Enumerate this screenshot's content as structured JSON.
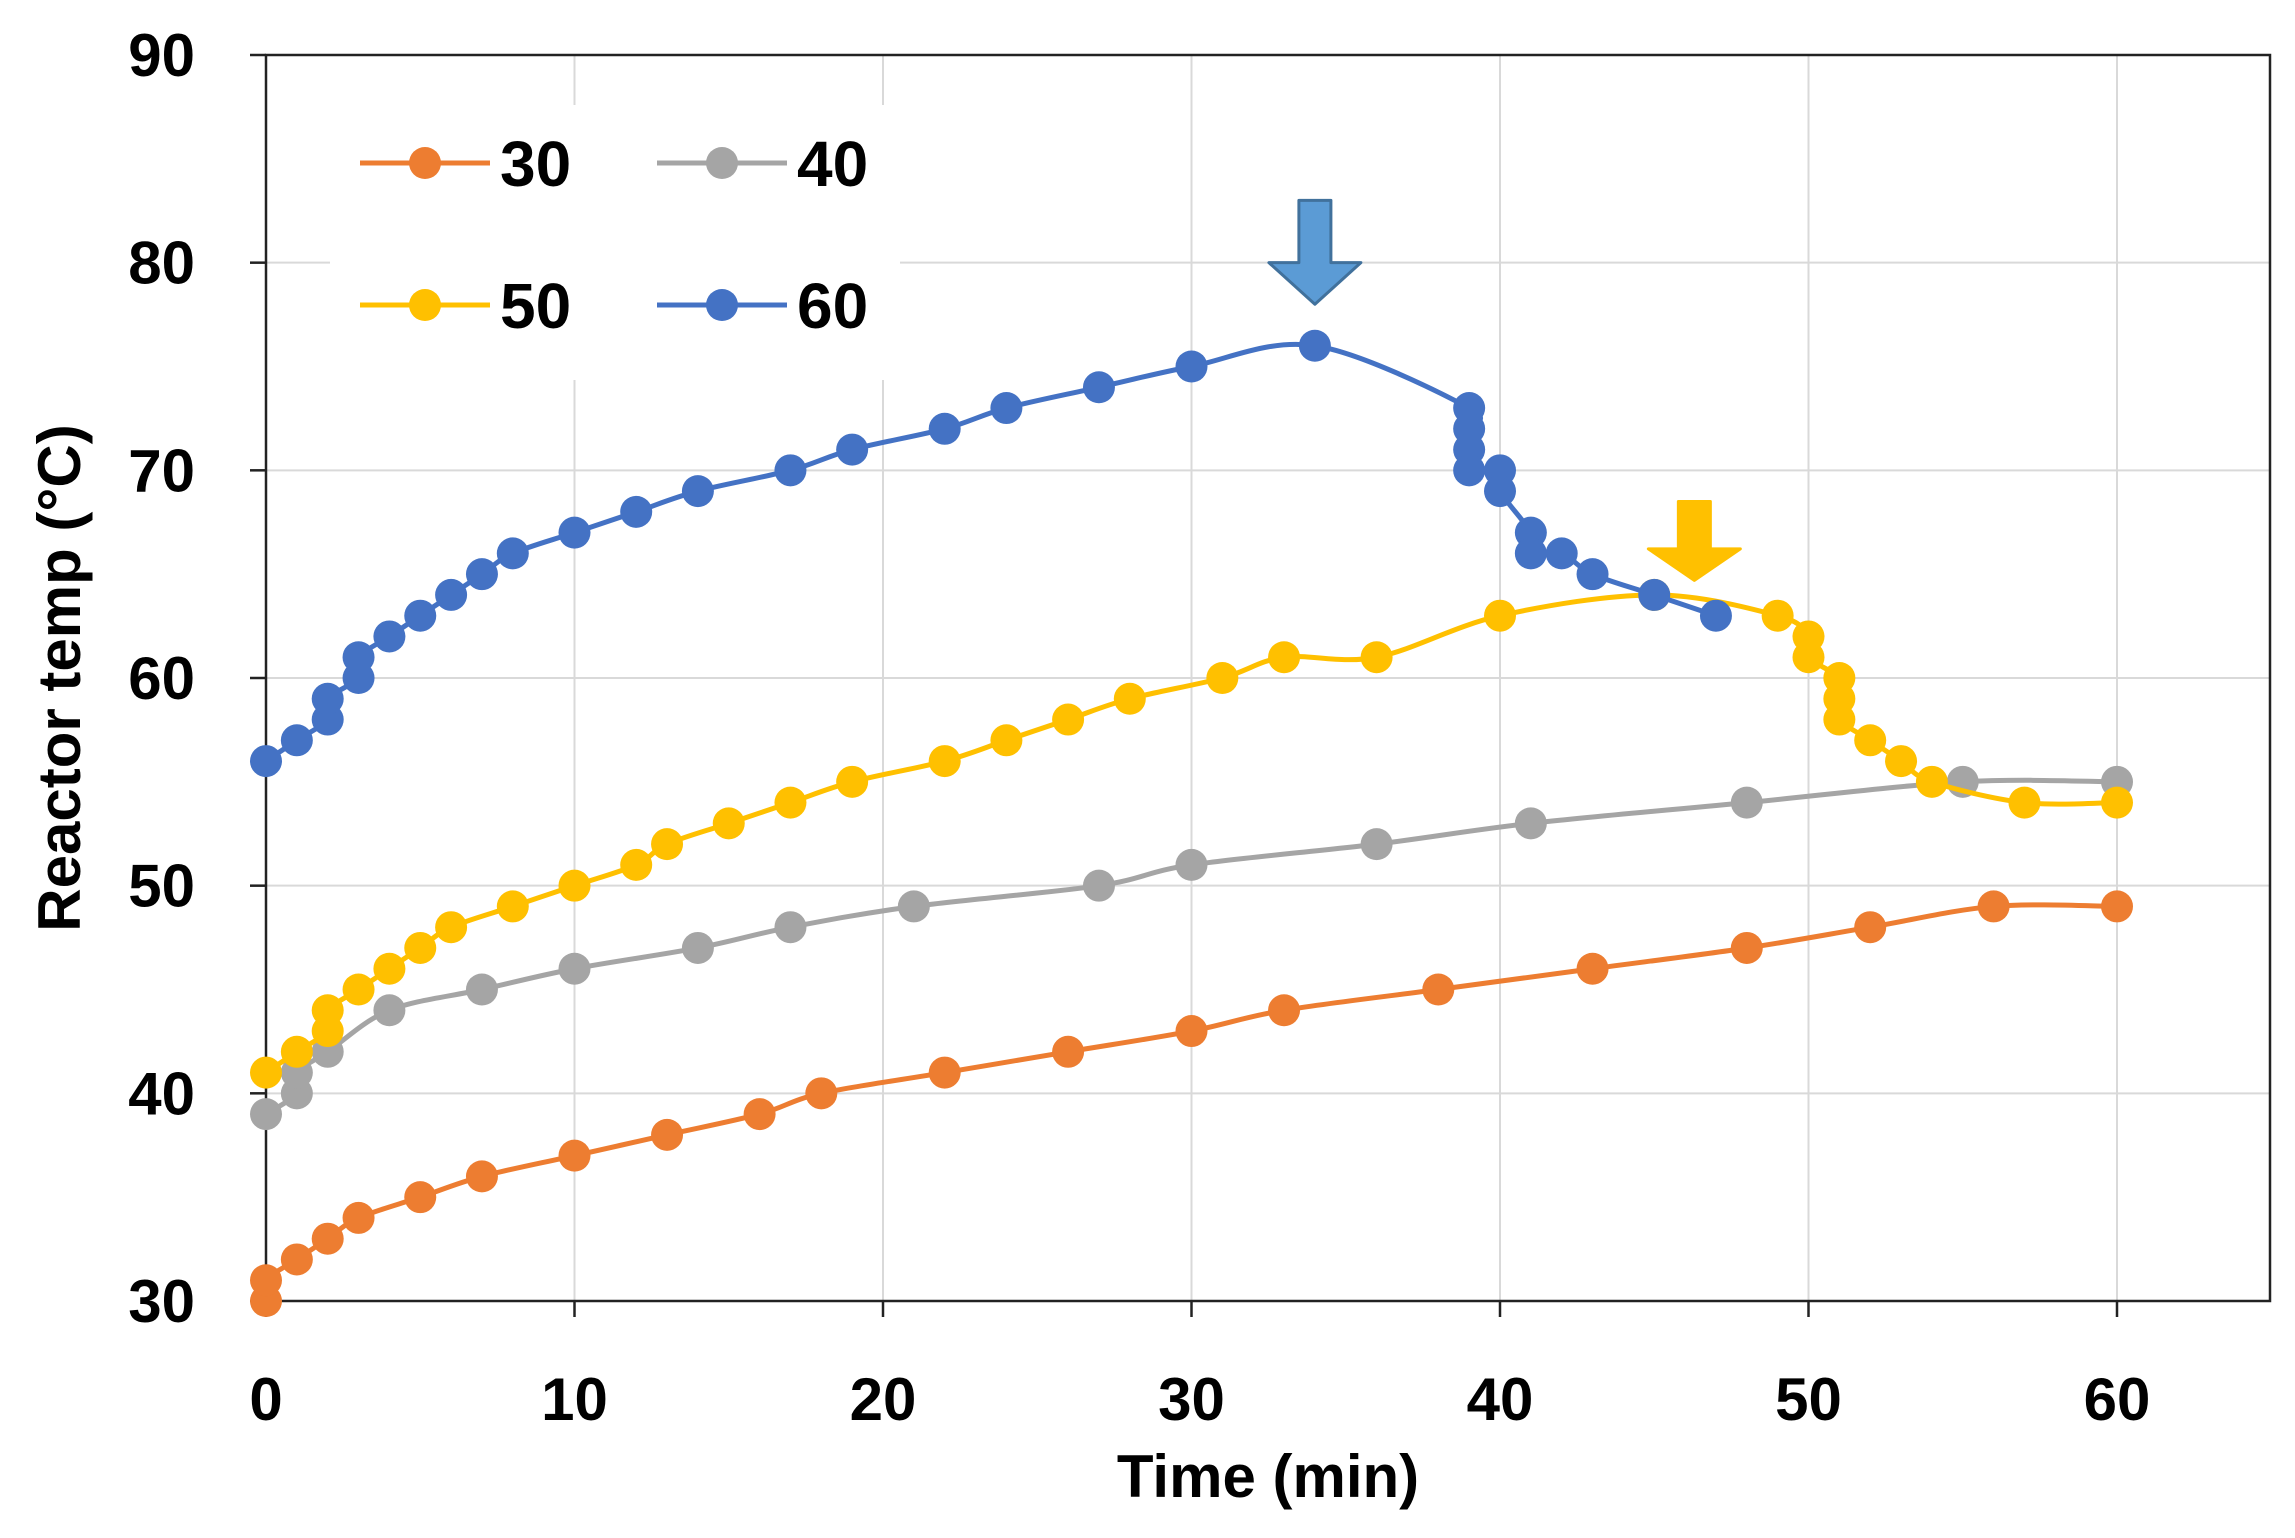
{
  "chart_data": {
    "type": "line",
    "title": "",
    "xlabel": "Time (min)",
    "ylabel": "Reactor temp (°C)",
    "xlim": [
      0,
      65
    ],
    "ylim": [
      30,
      90
    ],
    "xticks": [
      0,
      10,
      20,
      30,
      40,
      50,
      60
    ],
    "yticks": [
      30,
      40,
      50,
      60,
      70,
      80,
      90
    ],
    "grid": true,
    "legend_position": "top-left",
    "series": [
      {
        "name": "30",
        "color": "#ED7D31",
        "points": [
          [
            0,
            30
          ],
          [
            0,
            31
          ],
          [
            1,
            32
          ],
          [
            2,
            33
          ],
          [
            3,
            34
          ],
          [
            5,
            35
          ],
          [
            7,
            36
          ],
          [
            10,
            37
          ],
          [
            13,
            38
          ],
          [
            16,
            39
          ],
          [
            18,
            40
          ],
          [
            22,
            41
          ],
          [
            26,
            42
          ],
          [
            30,
            43
          ],
          [
            33,
            44
          ],
          [
            38,
            45
          ],
          [
            43,
            46
          ],
          [
            48,
            47
          ],
          [
            52,
            48
          ],
          [
            56,
            49
          ],
          [
            60,
            49
          ]
        ]
      },
      {
        "name": "40",
        "color": "#A5A5A5",
        "points": [
          [
            0,
            39
          ],
          [
            1,
            40
          ],
          [
            1,
            41
          ],
          [
            2,
            42
          ],
          [
            4,
            44
          ],
          [
            7,
            45
          ],
          [
            10,
            46
          ],
          [
            14,
            47
          ],
          [
            17,
            48
          ],
          [
            21,
            49
          ],
          [
            27,
            50
          ],
          [
            30,
            51
          ],
          [
            36,
            52
          ],
          [
            41,
            53
          ],
          [
            48,
            54
          ],
          [
            55,
            55
          ],
          [
            60,
            55
          ]
        ]
      },
      {
        "name": "50",
        "color": "#FFC000",
        "points": [
          [
            0,
            41
          ],
          [
            1,
            42
          ],
          [
            2,
            43
          ],
          [
            2,
            44
          ],
          [
            3,
            45
          ],
          [
            4,
            46
          ],
          [
            5,
            47
          ],
          [
            6,
            48
          ],
          [
            8,
            49
          ],
          [
            10,
            50
          ],
          [
            12,
            51
          ],
          [
            13,
            52
          ],
          [
            15,
            53
          ],
          [
            17,
            54
          ],
          [
            19,
            55
          ],
          [
            22,
            56
          ],
          [
            24,
            57
          ],
          [
            26,
            58
          ],
          [
            28,
            59
          ],
          [
            31,
            60
          ],
          [
            33,
            61
          ],
          [
            36,
            61
          ],
          [
            40,
            63
          ],
          [
            45,
            64
          ],
          [
            49,
            63
          ],
          [
            50,
            62
          ],
          [
            50,
            61
          ],
          [
            51,
            60
          ],
          [
            51,
            59
          ],
          [
            51,
            58
          ],
          [
            52,
            57
          ],
          [
            53,
            56
          ],
          [
            54,
            55
          ],
          [
            57,
            54
          ],
          [
            60,
            54
          ]
        ]
      },
      {
        "name": "60",
        "color": "#4472C4",
        "points": [
          [
            0,
            56
          ],
          [
            1,
            57
          ],
          [
            2,
            58
          ],
          [
            2,
            59
          ],
          [
            3,
            60
          ],
          [
            3,
            61
          ],
          [
            4,
            62
          ],
          [
            5,
            63
          ],
          [
            6,
            64
          ],
          [
            7,
            65
          ],
          [
            8,
            66
          ],
          [
            10,
            67
          ],
          [
            12,
            68
          ],
          [
            14,
            69
          ],
          [
            17,
            70
          ],
          [
            19,
            71
          ],
          [
            22,
            72
          ],
          [
            24,
            73
          ],
          [
            27,
            74
          ],
          [
            30,
            75
          ],
          [
            34,
            76
          ],
          [
            39,
            73
          ],
          [
            39,
            72
          ],
          [
            39,
            71
          ],
          [
            39,
            70
          ],
          [
            40,
            70
          ],
          [
            40,
            69
          ],
          [
            41,
            67
          ],
          [
            41,
            66
          ],
          [
            42,
            66
          ],
          [
            43,
            65
          ],
          [
            45,
            64
          ],
          [
            47,
            63
          ]
        ]
      }
    ],
    "annotations": [
      {
        "type": "arrow-down",
        "x": 34,
        "y_top": 83,
        "y_tip": 78,
        "color": "#5B9BD5",
        "marks": "peak of 60 series"
      },
      {
        "type": "arrow-down",
        "x": 46.3,
        "y_top": 68.5,
        "y_tip": 64.7,
        "color": "#FFC000",
        "marks": "peak of 50 series"
      }
    ]
  }
}
